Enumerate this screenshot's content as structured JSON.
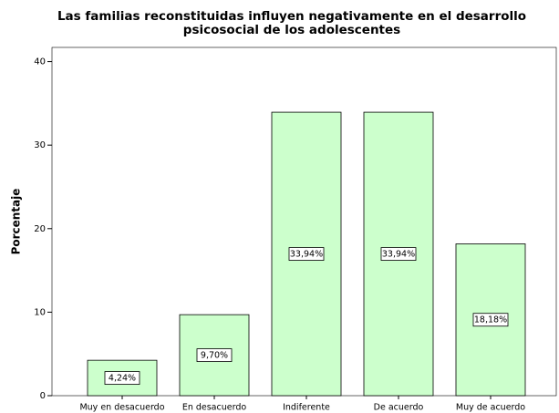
{
  "chart_data": {
    "type": "bar",
    "title": [
      "Las familias reconstituidas influyen negativamente en el desarrollo",
      "psicosocial de los adolescentes"
    ],
    "ylabel": "Porcentaje",
    "categories": [
      "Muy en desacuerdo",
      "En desacuerdo",
      "Indiferente",
      "De acuerdo",
      "Muy de acuerdo"
    ],
    "values": [
      4.24,
      9.7,
      33.94,
      33.94,
      18.18
    ],
    "value_labels": [
      "4,24%",
      "9,70%",
      "33,94%",
      "33,94%",
      "18,18%"
    ],
    "color": "#ccffcc",
    "ylim": [
      0,
      41.7
    ],
    "yticks": [
      0,
      10,
      20,
      30,
      40
    ]
  }
}
